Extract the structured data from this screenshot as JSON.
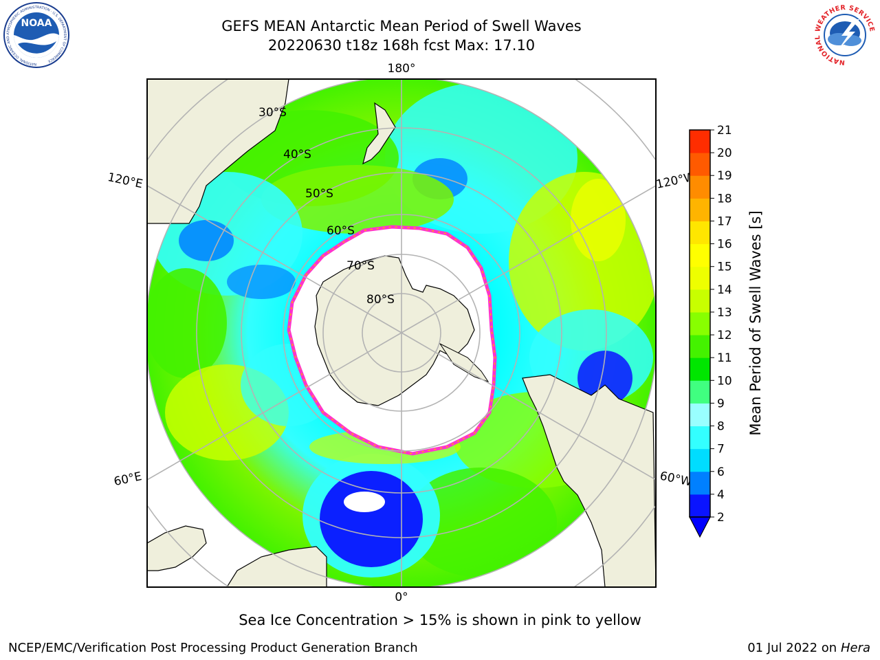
{
  "header": {
    "title_line1": "GEFS MEAN Antarctic Mean Period of Swell Waves",
    "title_line2": "20220630 t18z 168h fcst   Max: 17.10"
  },
  "logos": {
    "left": {
      "name": "noaa-logo",
      "text": "NOAA",
      "ring_text": "NATIONAL OCEANIC AND ATMOSPHERIC ADMINISTRATION · U.S. DEPARTMENT OF COMMERCE"
    },
    "right": {
      "name": "nws-logo",
      "ring_text": "NATIONAL WEATHER SERVICE"
    }
  },
  "map": {
    "projection": "south-polar-stereographic",
    "longitude_labels": {
      "top": "180°",
      "bottom": "0°",
      "upper_left": "120°E",
      "upper_right": "120°W",
      "lower_left": "60°E",
      "lower_right": "60°W"
    },
    "latitude_labels": [
      "30°S",
      "40°S",
      "50°S",
      "60°S",
      "70°S",
      "80°S"
    ],
    "colors": {
      "land": "#efefdc",
      "sea_ice_edge": "#ff33cc",
      "frame": "#000000",
      "grid": "#b3b3b3",
      "ice_interior": "#ffffff"
    }
  },
  "colorbar": {
    "label": "Mean Period of Swell Waves [s]",
    "ticks": [
      "2",
      "4",
      "6",
      "7",
      "8",
      "9",
      "10",
      "11",
      "12",
      "13",
      "14",
      "15",
      "16",
      "17",
      "18",
      "19",
      "20",
      "21"
    ],
    "colors": [
      "#0a14ff",
      "#0080ff",
      "#00ddff",
      "#33ffff",
      "#99ffff",
      "#40ff80",
      "#00e600",
      "#44f200",
      "#88ff00",
      "#c8ff00",
      "#eeff00",
      "#ffff00",
      "#ffe600",
      "#ffb400",
      "#ff8c00",
      "#ff5a00",
      "#ff2d00",
      "#ff0000"
    ],
    "under_color": "#0000ff"
  },
  "caption": "Sea Ice Concentration > 15% is shown in pink to yellow",
  "footer": {
    "left": "NCEP/EMC/Verification Post Processing Product Generation Branch",
    "right_prefix": "01 Jul 2022 on ",
    "right_host": "Hera"
  }
}
